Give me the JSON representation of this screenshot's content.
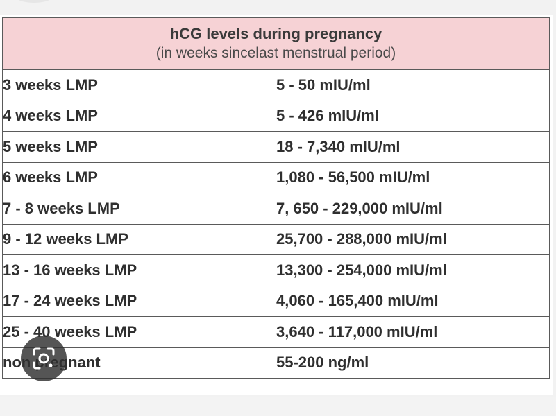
{
  "table": {
    "title": "hCG levels during pregnancy",
    "subtitle": "(in weeks sincelast menstrual period)",
    "rows": [
      {
        "period": "3 weeks LMP",
        "level": "5 - 50 mIU/ml"
      },
      {
        "period": "4 weeks LMP",
        "level": "5 - 426 mIU/ml"
      },
      {
        "period": "5 weeks LMP",
        "level": "18 - 7,340 mIU/ml"
      },
      {
        "period": "6 weeks LMP",
        "level": "1,080 - 56,500 mIU/ml"
      },
      {
        "period": "7 - 8 weeks LMP",
        "level": "7, 650 - 229,000 mIU/ml"
      },
      {
        "period": "9 - 12 weeks LMP",
        "level": "25,700 - 288,000 mIU/ml"
      },
      {
        "period": "13 - 16 weeks LMP",
        "level": "13,300 - 254,000 mIU/ml"
      },
      {
        "period": "17 - 24 weeks LMP",
        "level": "4,060 - 165,400 mIU/ml"
      },
      {
        "period": "25 - 40 weeks LMP",
        "level": "3,640 - 117,000 mIU/ml"
      },
      {
        "period": "non pregnant",
        "level": "55-200 ng/ml"
      }
    ]
  },
  "overlay": {
    "icon": "lens-search-icon"
  },
  "colors": {
    "header_bg": "#f6d2d5",
    "border": "#5a5a5a",
    "text": "#2f2f2f"
  }
}
